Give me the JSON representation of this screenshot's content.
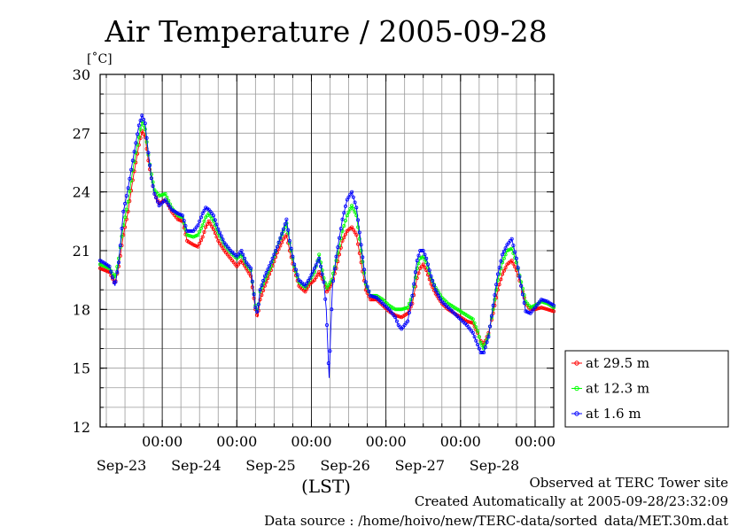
{
  "chart_data": {
    "type": "line",
    "title": "Air Temperature / 2005-09-28",
    "ylabel": "[˚C]",
    "xlabel": "(LST)",
    "ylim": [
      12,
      30
    ],
    "yticks": [
      12,
      15,
      18,
      21,
      24,
      27,
      30
    ],
    "x_range_hours": [
      0,
      146
    ],
    "time_ticks": [
      {
        "hour": 20,
        "label": "00:00",
        "date": "Sep-23"
      },
      {
        "hour": 44,
        "label": "00:00",
        "date": "Sep-24"
      },
      {
        "hour": 68,
        "label": "00:00",
        "date": "Sep-25"
      },
      {
        "hour": 92,
        "label": "00:00",
        "date": "Sep-26"
      },
      {
        "hour": 116,
        "label": "00:00",
        "date": "Sep-27"
      },
      {
        "hour": 140,
        "label": "00:00",
        "date": "Sep-28"
      }
    ],
    "legend_position": "right-bottom",
    "grid": true,
    "series": [
      {
        "name": "at 29.5 m",
        "color": "#ff0000",
        "points": [
          [
            0,
            20.1
          ],
          [
            3,
            19.9
          ],
          [
            4.8,
            19.3
          ],
          [
            6,
            20.2
          ],
          [
            7.5,
            21.8
          ],
          [
            9,
            23
          ],
          [
            10.5,
            24.6
          ],
          [
            11.5,
            25.5
          ],
          [
            12.5,
            26.4
          ],
          [
            13.5,
            27.1
          ],
          [
            14.5,
            26.8
          ],
          [
            15.5,
            25.6
          ],
          [
            16.5,
            24.7
          ],
          [
            17.5,
            23.9
          ],
          [
            19,
            23.4
          ],
          [
            21,
            23.6
          ],
          [
            23,
            23
          ],
          [
            25,
            22.6
          ],
          [
            26.5,
            22.5
          ],
          [
            28,
            21.5
          ],
          [
            30,
            21.3
          ],
          [
            31.5,
            21.2
          ],
          [
            33,
            21.7
          ],
          [
            34,
            22.2
          ],
          [
            35,
            22.5
          ],
          [
            36.5,
            22.1
          ],
          [
            38,
            21.5
          ],
          [
            40,
            21
          ],
          [
            42,
            20.6
          ],
          [
            44,
            20.2
          ],
          [
            45.5,
            20.5
          ],
          [
            47,
            20.1
          ],
          [
            48.5,
            19.7
          ],
          [
            50,
            18
          ],
          [
            50.7,
            17.6
          ],
          [
            51.5,
            18.5
          ],
          [
            53,
            19.2
          ],
          [
            55,
            20
          ],
          [
            57,
            20.9
          ],
          [
            59,
            21.6
          ],
          [
            60,
            21.8
          ],
          [
            61,
            21
          ],
          [
            62.5,
            20
          ],
          [
            64,
            19.2
          ],
          [
            66,
            18.9
          ],
          [
            67.5,
            19.3
          ],
          [
            69,
            19.5
          ],
          [
            70.5,
            19.9
          ],
          [
            72,
            19.4
          ],
          [
            73,
            18.9
          ],
          [
            74.5,
            19.3
          ],
          [
            76,
            20.1
          ],
          [
            78,
            21.5
          ],
          [
            79.5,
            22
          ],
          [
            81,
            22.2
          ],
          [
            82.5,
            21.8
          ],
          [
            84,
            20.4
          ],
          [
            85.5,
            19
          ],
          [
            87,
            18.5
          ],
          [
            89,
            18.5
          ],
          [
            91,
            18.2
          ],
          [
            93,
            17.9
          ],
          [
            95,
            17.7
          ],
          [
            97,
            17.6
          ],
          [
            99,
            17.8
          ],
          [
            100.5,
            18.3
          ],
          [
            102,
            19.6
          ],
          [
            103,
            20.1
          ],
          [
            104,
            20.3
          ],
          [
            105,
            20
          ],
          [
            106.5,
            19.3
          ],
          [
            108,
            18.8
          ],
          [
            110,
            18.3
          ],
          [
            112,
            18
          ],
          [
            114,
            17.8
          ],
          [
            116,
            17.6
          ],
          [
            118,
            17.4
          ],
          [
            120,
            17.3
          ],
          [
            121.5,
            16.8
          ],
          [
            122.5,
            16.4
          ],
          [
            123.5,
            16.2
          ],
          [
            125,
            16.8
          ],
          [
            126.5,
            17.8
          ],
          [
            128,
            19
          ],
          [
            129.5,
            19.8
          ],
          [
            131,
            20.3
          ],
          [
            132.5,
            20.5
          ],
          [
            134,
            20
          ],
          [
            135.5,
            19.2
          ],
          [
            137,
            18.3
          ],
          [
            138.5,
            18
          ],
          [
            140,
            18
          ],
          [
            142,
            18.1
          ],
          [
            144,
            18
          ],
          [
            146,
            17.9
          ]
        ]
      },
      {
        "name": "at 12.3 m",
        "color": "#00ff00",
        "points": [
          [
            0,
            20.3
          ],
          [
            3,
            20.1
          ],
          [
            4.8,
            19.6
          ],
          [
            6,
            20.6
          ],
          [
            7.5,
            22.3
          ],
          [
            9,
            23.5
          ],
          [
            10.5,
            25.1
          ],
          [
            11.5,
            26
          ],
          [
            12.5,
            26.8
          ],
          [
            13.5,
            27.6
          ],
          [
            14.5,
            27.2
          ],
          [
            15.5,
            25.9
          ],
          [
            16.5,
            24.9
          ],
          [
            17.5,
            24.1
          ],
          [
            19,
            23.8
          ],
          [
            21,
            23.9
          ],
          [
            23,
            23.2
          ],
          [
            25,
            22.8
          ],
          [
            26.5,
            22.7
          ],
          [
            28,
            21.8
          ],
          [
            30,
            21.7
          ],
          [
            31.5,
            21.8
          ],
          [
            33,
            22.3
          ],
          [
            34,
            22.7
          ],
          [
            35,
            22.9
          ],
          [
            36.5,
            22.5
          ],
          [
            38,
            21.9
          ],
          [
            40,
            21.3
          ],
          [
            42,
            20.9
          ],
          [
            44,
            20.6
          ],
          [
            45.5,
            20.8
          ],
          [
            47,
            20.3
          ],
          [
            48.5,
            20
          ],
          [
            50,
            18.2
          ],
          [
            50.7,
            17.9
          ],
          [
            51.5,
            18.9
          ],
          [
            53,
            19.5
          ],
          [
            55,
            20.2
          ],
          [
            57,
            21.2
          ],
          [
            59,
            22
          ],
          [
            60,
            22.4
          ],
          [
            61,
            21.4
          ],
          [
            62.5,
            20.2
          ],
          [
            64,
            19.4
          ],
          [
            66,
            19.1
          ],
          [
            67.5,
            19.5
          ],
          [
            69,
            19.9
          ],
          [
            70.5,
            20.8
          ],
          [
            72,
            19.6
          ],
          [
            73,
            19.1
          ],
          [
            74.5,
            19.5
          ],
          [
            76,
            20.5
          ],
          [
            78,
            22
          ],
          [
            79.5,
            22.8
          ],
          [
            81,
            23.3
          ],
          [
            82.5,
            22.8
          ],
          [
            84,
            21
          ],
          [
            85.5,
            19.3
          ],
          [
            87,
            18.7
          ],
          [
            89,
            18.7
          ],
          [
            91,
            18.5
          ],
          [
            93,
            18.2
          ],
          [
            95,
            18
          ],
          [
            97,
            18
          ],
          [
            99,
            18.1
          ],
          [
            100.5,
            18.7
          ],
          [
            102,
            20.1
          ],
          [
            103,
            20.6
          ],
          [
            104,
            20.7
          ],
          [
            105,
            20.4
          ],
          [
            106.5,
            19.6
          ],
          [
            108,
            19.1
          ],
          [
            110,
            18.6
          ],
          [
            112,
            18.3
          ],
          [
            114,
            18.1
          ],
          [
            116,
            17.9
          ],
          [
            118,
            17.7
          ],
          [
            120,
            17.5
          ],
          [
            121.5,
            16.9
          ],
          [
            122.5,
            16.3
          ],
          [
            123.5,
            16
          ],
          [
            125,
            16.7
          ],
          [
            126.5,
            18
          ],
          [
            128,
            19.5
          ],
          [
            129.5,
            20.4
          ],
          [
            131,
            21
          ],
          [
            132.5,
            21.1
          ],
          [
            134,
            20.4
          ],
          [
            135.5,
            19.4
          ],
          [
            137,
            18.4
          ],
          [
            138.5,
            18.1
          ],
          [
            140,
            18.2
          ],
          [
            142,
            18.4
          ],
          [
            144,
            18.3
          ],
          [
            146,
            18.1
          ]
        ]
      },
      {
        "name": "at 1.6 m",
        "color": "#0000ff",
        "points": [
          [
            0,
            20.5
          ],
          [
            3,
            20.2
          ],
          [
            4.8,
            19.2
          ],
          [
            6,
            20.4
          ],
          [
            7.5,
            23
          ],
          [
            9,
            24.2
          ],
          [
            10.5,
            25.6
          ],
          [
            11.5,
            26.5
          ],
          [
            12.5,
            27.4
          ],
          [
            13.5,
            27.9
          ],
          [
            14.5,
            27.5
          ],
          [
            15.5,
            26
          ],
          [
            16.5,
            24.7
          ],
          [
            17.5,
            23.9
          ],
          [
            19,
            23.3
          ],
          [
            21,
            23.6
          ],
          [
            23,
            23.1
          ],
          [
            25,
            22.9
          ],
          [
            26.5,
            22.8
          ],
          [
            28,
            22
          ],
          [
            30,
            22
          ],
          [
            31.5,
            22.3
          ],
          [
            33,
            22.9
          ],
          [
            34,
            23.2
          ],
          [
            35,
            23.1
          ],
          [
            36.5,
            22.8
          ],
          [
            38,
            22.1
          ],
          [
            40,
            21.4
          ],
          [
            42,
            21
          ],
          [
            44,
            20.7
          ],
          [
            45.5,
            21
          ],
          [
            47,
            20.4
          ],
          [
            48.5,
            20.1
          ],
          [
            50,
            18.1
          ],
          [
            50.7,
            17.8
          ],
          [
            51.5,
            19
          ],
          [
            53,
            19.7
          ],
          [
            55,
            20.4
          ],
          [
            57,
            21.2
          ],
          [
            59,
            22.1
          ],
          [
            60,
            22.6
          ],
          [
            61,
            21.5
          ],
          [
            62.5,
            20.3
          ],
          [
            64,
            19.5
          ],
          [
            66,
            19.2
          ],
          [
            67.5,
            19.6
          ],
          [
            69,
            20.1
          ],
          [
            70.5,
            20.6
          ],
          [
            72,
            19.4
          ],
          [
            72.8,
            18
          ],
          [
            73.3,
            16
          ],
          [
            73.7,
            14.5
          ],
          [
            74.2,
            16.8
          ],
          [
            74.8,
            19.2
          ],
          [
            76,
            20.7
          ],
          [
            78,
            22.6
          ],
          [
            79.5,
            23.6
          ],
          [
            81,
            24
          ],
          [
            82.5,
            23.2
          ],
          [
            84,
            21.3
          ],
          [
            85.5,
            19.4
          ],
          [
            87,
            18.7
          ],
          [
            89,
            18.6
          ],
          [
            91,
            18.3
          ],
          [
            93,
            18
          ],
          [
            95,
            17.6
          ],
          [
            96,
            17.2
          ],
          [
            97,
            17
          ],
          [
            99,
            17.4
          ],
          [
            100.5,
            18.7
          ],
          [
            102,
            20.5
          ],
          [
            103,
            21
          ],
          [
            104,
            21
          ],
          [
            105,
            20.6
          ],
          [
            106.5,
            19.7
          ],
          [
            108,
            19
          ],
          [
            110,
            18.4
          ],
          [
            112,
            18.1
          ],
          [
            114,
            17.8
          ],
          [
            116,
            17.5
          ],
          [
            118,
            17.2
          ],
          [
            120,
            16.8
          ],
          [
            121.5,
            16.2
          ],
          [
            122.5,
            15.8
          ],
          [
            123.5,
            15.8
          ],
          [
            125,
            16.6
          ],
          [
            126.5,
            18.2
          ],
          [
            128,
            19.8
          ],
          [
            129.5,
            20.8
          ],
          [
            131,
            21.3
          ],
          [
            132.5,
            21.6
          ],
          [
            134,
            20.6
          ],
          [
            135.5,
            19.2
          ],
          [
            137,
            17.9
          ],
          [
            138.5,
            17.8
          ],
          [
            140,
            18.1
          ],
          [
            142,
            18.5
          ],
          [
            144,
            18.4
          ],
          [
            146,
            18.2
          ]
        ]
      }
    ]
  },
  "footer": {
    "line1": "Observed at TERC Tower site",
    "line2": "Created Automatically at 2005-09-28/23:32:09",
    "line3": "Data source : /home/hoivo/new/TERC-data/sorted_data/MET.30m.dat"
  }
}
